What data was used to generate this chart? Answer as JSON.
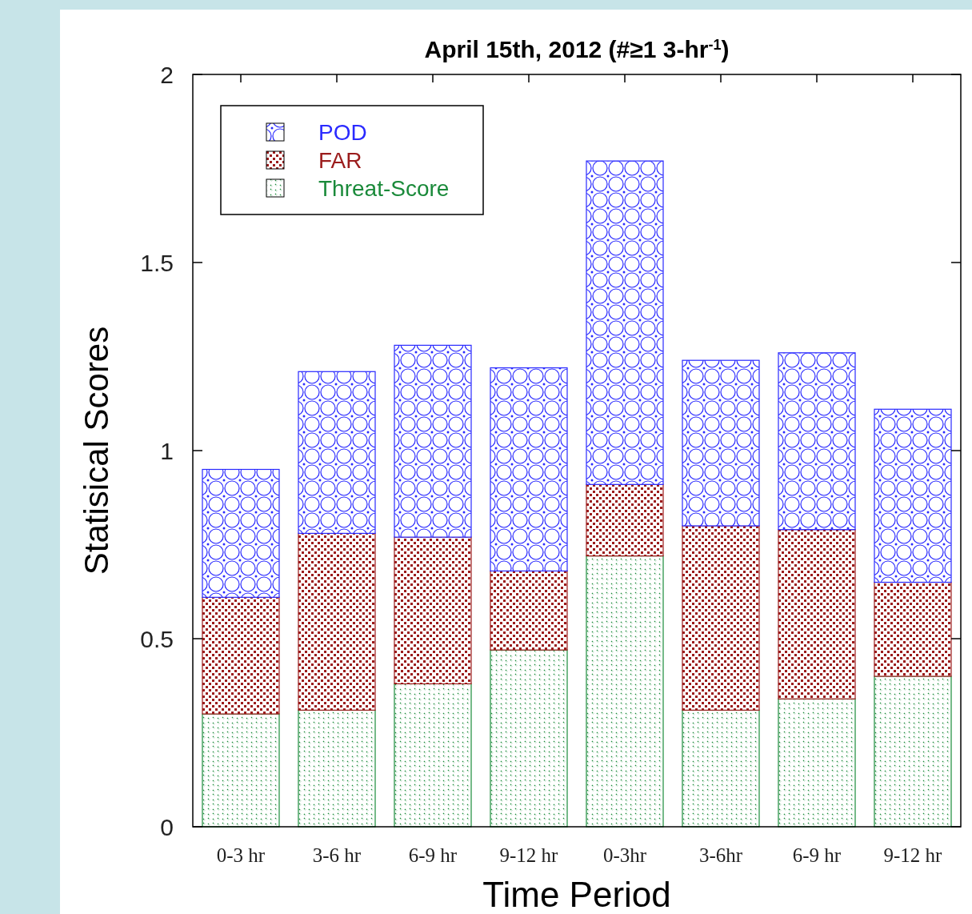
{
  "chart_data": {
    "type": "bar",
    "stacked": true,
    "title": "April 15th, 2012 (#≥1 3-hr$^{-1}$)",
    "xlabel": "Time Period",
    "ylabel": "Statisical Scores",
    "categories": [
      "0-3 hr",
      "3-6 hr",
      "6-9 hr",
      "9-12 hr",
      "0-3hr",
      "3-6hr",
      "6-9 hr",
      "9-12 hr"
    ],
    "series": [
      {
        "name": "Threat-Score",
        "color": "#1a8a3a",
        "values": [
          0.3,
          0.31,
          0.38,
          0.47,
          0.72,
          0.31,
          0.34,
          0.4
        ]
      },
      {
        "name": "FAR",
        "color": "#9b1c1c",
        "values": [
          0.31,
          0.47,
          0.39,
          0.21,
          0.19,
          0.49,
          0.45,
          0.25
        ]
      },
      {
        "name": "POD",
        "color": "#2a2aff",
        "values": [
          0.34,
          0.43,
          0.51,
          0.54,
          0.86,
          0.44,
          0.47,
          0.46
        ]
      }
    ],
    "ylim": [
      0,
      2
    ],
    "yticks": [
      0,
      0.5,
      1,
      1.5,
      2
    ],
    "grid": false,
    "legend": "top left"
  }
}
